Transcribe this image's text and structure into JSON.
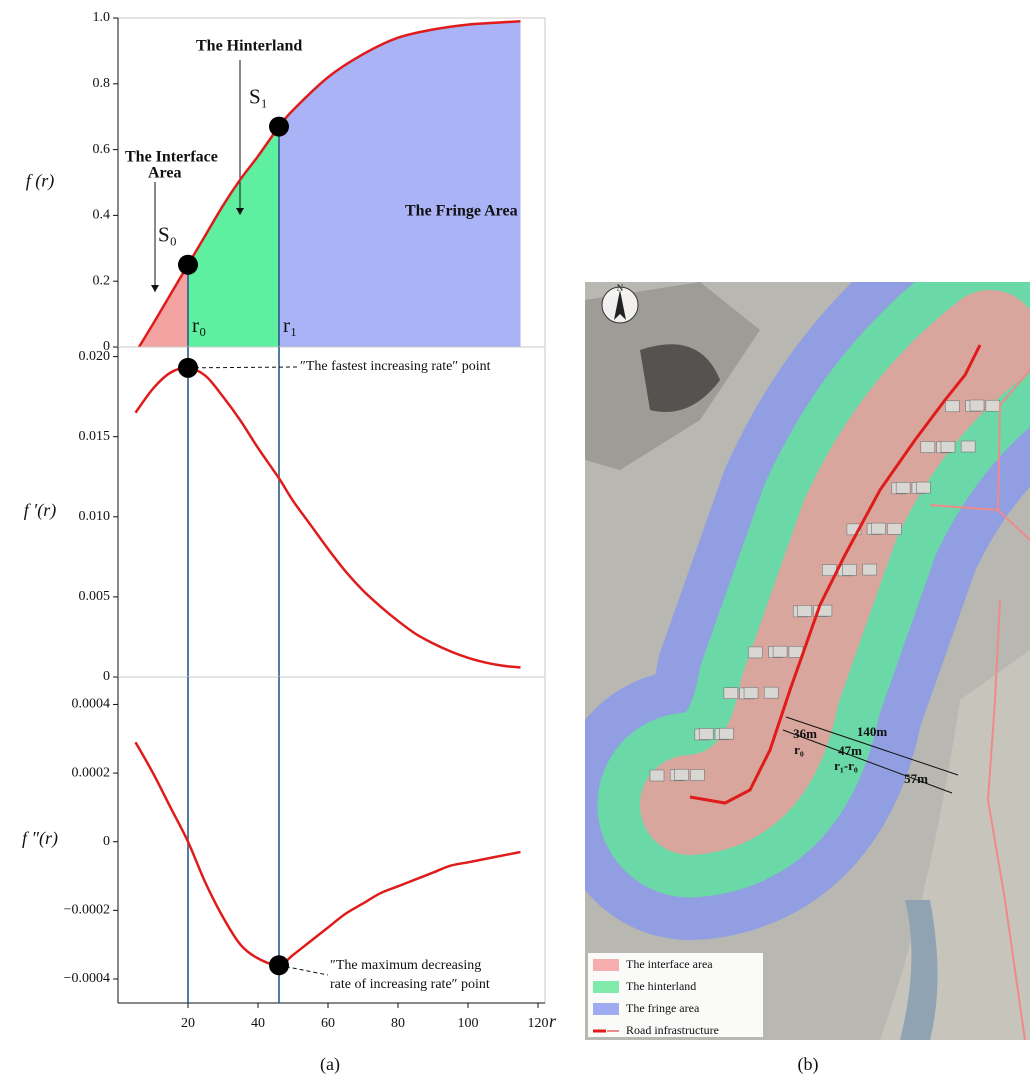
{
  "chart_data": [
    {
      "type": "line",
      "y_label": "f (r)",
      "x": [
        6,
        10,
        15,
        20,
        25,
        30,
        35,
        40,
        46,
        50,
        60,
        70,
        80,
        90,
        100,
        110,
        115
      ],
      "values": [
        0,
        0.07,
        0.16,
        0.25,
        0.34,
        0.43,
        0.51,
        0.58,
        0.67,
        0.72,
        0.82,
        0.89,
        0.94,
        0.965,
        0.98,
        0.987,
        0.99
      ],
      "color": "#e01b1b",
      "xlim": [
        0,
        122
      ],
      "ylim": [
        0,
        1
      ],
      "yticks": [
        0,
        0.2,
        0.4,
        0.6,
        0.8,
        {
          "value": 1,
          "label": "1.0"
        }
      ],
      "vlines": [
        {
          "value": 20,
          "label": "r₀"
        },
        {
          "value": 46,
          "label": "r₁"
        }
      ],
      "regions": [
        {
          "label": [
            "The Interface",
            "Area"
          ],
          "color": "#f4a3a3"
        },
        {
          "label": [
            "The Hinterland"
          ],
          "color": "#5ef0a0"
        },
        {
          "label": [
            "The Fringe Area"
          ],
          "color": "#a9b3f6"
        }
      ],
      "points": [
        {
          "label": "S₀",
          "x": 20,
          "y": 0.25
        },
        {
          "label": "S₁",
          "x": 46,
          "y": 0.67
        }
      ]
    },
    {
      "type": "line",
      "y_label": "f ′(r)",
      "x": [
        5,
        10,
        15,
        20,
        25,
        30,
        35,
        40,
        46,
        50,
        55,
        60,
        65,
        70,
        75,
        80,
        85,
        90,
        95,
        100,
        105,
        110,
        115
      ],
      "values": [
        0.0165,
        0.018,
        0.019,
        0.0193,
        0.0188,
        0.0175,
        0.016,
        0.0143,
        0.0124,
        0.011,
        0.0095,
        0.008,
        0.0066,
        0.0054,
        0.0044,
        0.0035,
        0.0027,
        0.0021,
        0.0016,
        0.0012,
        0.0009,
        0.0007,
        0.0006
      ],
      "color": "#e01b1b",
      "xlim": [
        0,
        122
      ],
      "ylim": [
        0,
        0.0206
      ],
      "yticks": [
        0,
        0.005,
        {
          "value": 0.01,
          "label": "0.010"
        },
        0.015,
        {
          "value": 0.02,
          "label": "0.020"
        }
      ],
      "vlines": [
        {
          "value": 20
        },
        {
          "value": 46
        }
      ],
      "points": [
        {
          "x": 20,
          "y": 0.0193
        }
      ],
      "annotation": [
        "″The fastest increasing rate″ point"
      ]
    },
    {
      "type": "line",
      "y_label": "f ″(r)",
      "x_label": "r",
      "x": [
        5,
        10,
        15,
        20,
        25,
        30,
        35,
        40,
        46,
        50,
        55,
        60,
        65,
        70,
        75,
        80,
        85,
        90,
        95,
        100,
        105,
        110,
        115
      ],
      "values": [
        0.00029,
        0.0002,
        0.0001,
        0,
        -0.00012,
        -0.00022,
        -0.0003,
        -0.00034,
        -0.00036,
        -0.00033,
        -0.00029,
        -0.00025,
        -0.00021,
        -0.00018,
        -0.00015,
        -0.00013,
        -0.00011,
        -9e-05,
        -7e-05,
        -6e-05,
        -5e-05,
        -4e-05,
        -3e-05
      ],
      "color": "#e01b1b",
      "xlim": [
        0,
        122
      ],
      "ylim": [
        -0.00047,
        0.00048
      ],
      "yticks": [
        {
          "value": -0.0004,
          "label": "−0.0004"
        },
        {
          "value": -0.0002,
          "label": "−0.0002"
        },
        0,
        {
          "value": 0.0002,
          "label": "0.0002"
        },
        {
          "value": 0.0004,
          "label": "0.0004"
        }
      ],
      "xticks": [
        20,
        40,
        60,
        80,
        100,
        120
      ],
      "vlines": [
        {
          "value": 20
        },
        {
          "value": 46
        }
      ],
      "points": [
        {
          "x": 46,
          "y": -0.00036
        }
      ],
      "annotation": [
        "″The maximum decreasing",
        "rate of increasing rate″ point"
      ]
    }
  ],
  "map": {
    "north": "N",
    "labels": [
      "140m",
      "36m",
      "r₀",
      "47m",
      "r₁-r₀",
      "57m"
    ],
    "legend": [
      {
        "label": "The interface area",
        "color": "#f49a9a"
      },
      {
        "label": "The hinterland",
        "color": "#62e69a"
      },
      {
        "label": "The fringe area",
        "color": "#8797ee"
      },
      {
        "label": "Road infrastructure",
        "color": "#e01b1b"
      }
    ]
  },
  "panel_labels": [
    "(a)",
    "(b)"
  ]
}
